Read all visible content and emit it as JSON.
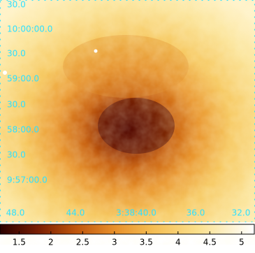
{
  "image": {
    "y_labels": [
      "30.0",
      "10:00:00.0",
      "30.0",
      "59:00.0",
      "30.0",
      "58:00.0",
      "30.0",
      "9:57:00.0"
    ],
    "x_labels": [
      "48.0",
      "44.0",
      "3:38:40.0",
      "36.0",
      "32.0"
    ]
  },
  "colorbar": {
    "range": [
      1.2,
      5.2
    ],
    "ticks": [
      1.5,
      2,
      2.5,
      3,
      3.5,
      4,
      4.5,
      5
    ]
  }
}
